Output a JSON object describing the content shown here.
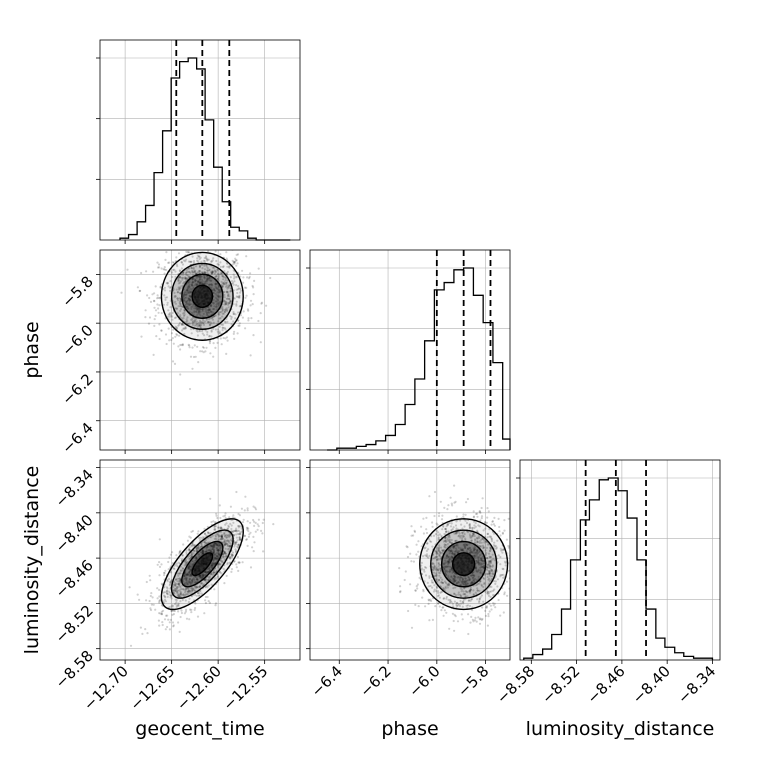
{
  "chart_data": {
    "type": "corner",
    "parameters": [
      {
        "key": "geocent_time",
        "label": "geocent_time",
        "range": [
          -12.727,
          -12.512
        ],
        "ticks": [
          -12.7,
          -12.65,
          -12.6,
          -12.55
        ],
        "tick_labels": [
          "−12.70",
          "−12.65",
          "−12.60",
          "−12.55"
        ],
        "quantiles": [
          -12.645,
          -12.617,
          -12.588
        ],
        "hist_edges": [
          -12.7055,
          -12.6963,
          -12.6871,
          -12.678,
          -12.6689,
          -12.6597,
          -12.6505,
          -12.6414,
          -12.6322,
          -12.6231,
          -12.614,
          -12.6048,
          -12.5956,
          -12.5865,
          -12.5773,
          -12.5682,
          -12.5591,
          -12.5499,
          -12.5407,
          -12.5316,
          -12.5224
        ],
        "hist_counts": [
          0.01,
          0.03,
          0.1,
          0.19,
          0.37,
          0.6,
          0.89,
          0.98,
          1.0,
          0.94,
          0.66,
          0.4,
          0.21,
          0.07,
          0.05,
          0.01,
          0.0,
          0.0,
          0.0,
          0.0
        ]
      },
      {
        "key": "phase",
        "label": "phase",
        "range": [
          -6.52,
          -5.7
        ],
        "ticks": [
          -6.4,
          -6.2,
          -6.0,
          -5.8
        ],
        "tick_labels": [
          "−6.4",
          "−6.2",
          "−6.0",
          "−5.8"
        ],
        "quantiles": [
          -6.0,
          -5.89,
          -5.78
        ],
        "hist_edges": [
          -6.45,
          -6.41,
          -6.37,
          -6.33,
          -6.29,
          -6.25,
          -6.21,
          -6.17,
          -6.13,
          -6.09,
          -6.05,
          -6.01,
          -5.97,
          -5.93,
          -5.89,
          -5.85,
          -5.81,
          -5.77,
          -5.73,
          -5.7
        ],
        "hist_counts": [
          0.0,
          0.01,
          0.01,
          0.02,
          0.03,
          0.05,
          0.08,
          0.14,
          0.25,
          0.39,
          0.6,
          0.88,
          0.92,
          0.99,
          1.0,
          0.85,
          0.7,
          0.48,
          0.06
        ]
      },
      {
        "key": "luminosity_distance",
        "label": "luminosity_distance",
        "range": [
          -8.595,
          -8.33
        ],
        "ticks": [
          -8.58,
          -8.52,
          -8.46,
          -8.4,
          -8.34
        ],
        "tick_labels": [
          "−8.58",
          "−8.52",
          "−8.46",
          "−8.40",
          "−8.34"
        ],
        "quantiles": [
          -8.508,
          -8.468,
          -8.428
        ],
        "hist_edges": [
          -8.59,
          -8.578,
          -8.565,
          -8.553,
          -8.54,
          -8.528,
          -8.515,
          -8.503,
          -8.49,
          -8.478,
          -8.465,
          -8.453,
          -8.44,
          -8.428,
          -8.415,
          -8.403,
          -8.39,
          -8.378,
          -8.365,
          -8.353,
          -8.34
        ],
        "hist_counts": [
          0.01,
          0.03,
          0.06,
          0.14,
          0.28,
          0.55,
          0.77,
          0.88,
          0.99,
          1.0,
          0.93,
          0.78,
          0.55,
          0.28,
          0.12,
          0.07,
          0.04,
          0.02,
          0.01,
          0.01
        ]
      }
    ],
    "pairs": [
      {
        "x": "geocent_time",
        "y": "phase",
        "mean": [
          -12.617,
          -5.89
        ],
        "sd": [
          0.022,
          0.09
        ],
        "corr": 0.0
      },
      {
        "x": "geocent_time",
        "y": "luminosity_distance",
        "mean": [
          -12.617,
          -8.468
        ],
        "sd": [
          0.022,
          0.03
        ],
        "corr": 0.72
      },
      {
        "x": "phase",
        "y": "luminosity_distance",
        "mean": [
          -5.89,
          -8.468
        ],
        "sd": [
          0.09,
          0.03
        ],
        "corr": 0.0
      }
    ],
    "grid": true,
    "colors": {
      "lines": "#000000",
      "grid": "#b0b0b0",
      "density": "#000000",
      "quantile": "#000000"
    }
  }
}
